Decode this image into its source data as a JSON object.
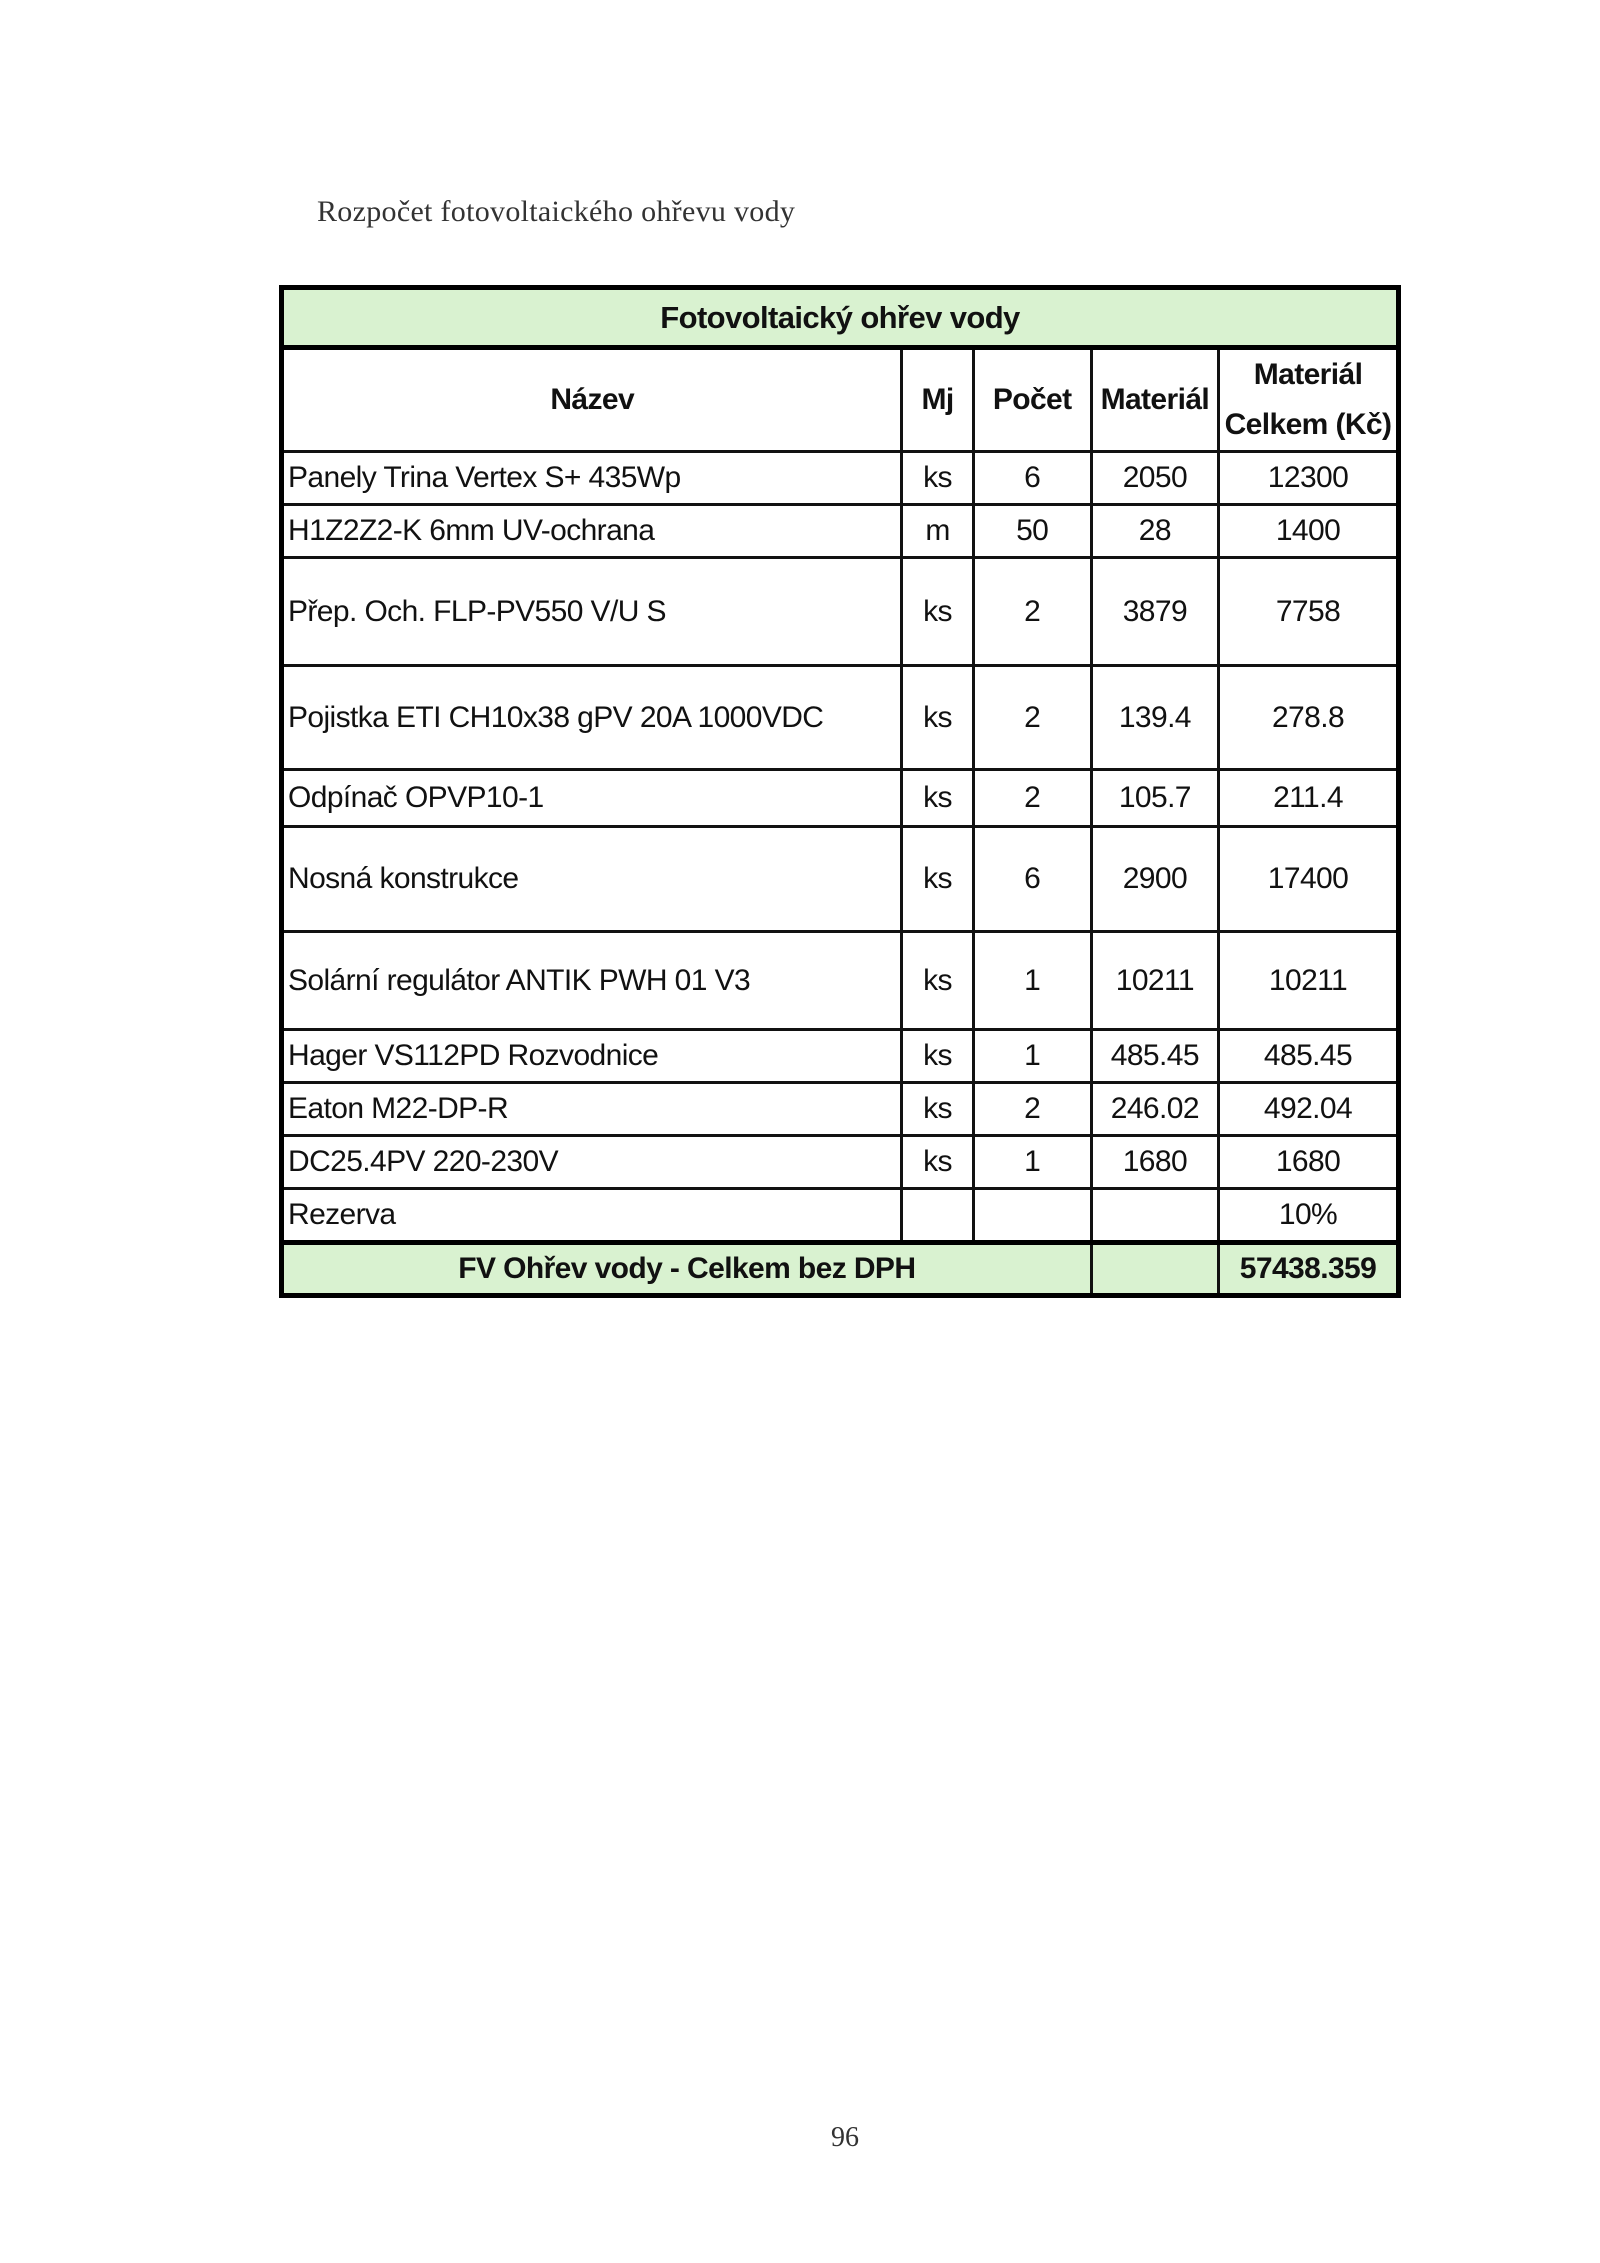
{
  "heading": "Rozpočet fotovoltaického ohřevu vody",
  "table": {
    "title": "Fotovoltaický ohřev vody",
    "columns": [
      "Název",
      "Mj",
      "Počet",
      "Materiál",
      "Materiál Celkem (Kč)"
    ],
    "rows": [
      {
        "name": "Panely Trina Vertex S+ 435Wp",
        "mj": "ks",
        "pocet": "6",
        "material": "2050",
        "celkem": "12300"
      },
      {
        "name": "H1Z2Z2-K 6mm UV-ochrana",
        "mj": "m",
        "pocet": "50",
        "material": "28",
        "celkem": "1400"
      },
      {
        "name": "Přep. Och. FLP-PV550 V/U S",
        "mj": "ks",
        "pocet": "2",
        "material": "3879",
        "celkem": "7758"
      },
      {
        "name": "Pojistka ETI CH10x38 gPV 20A 1000VDC",
        "mj": "ks",
        "pocet": "2",
        "material": "139.4",
        "celkem": "278.8"
      },
      {
        "name": "Odpínač OPVP10-1",
        "mj": "ks",
        "pocet": "2",
        "material": "105.7",
        "celkem": "211.4"
      },
      {
        "name": "Nosná konstrukce",
        "mj": "ks",
        "pocet": "6",
        "material": "2900",
        "celkem": "17400"
      },
      {
        "name": "Solární regulátor ANTIK PWH 01 V3",
        "mj": "ks",
        "pocet": "1",
        "material": "10211",
        "celkem": "10211"
      },
      {
        "name": "Hager VS112PD Rozvodnice",
        "mj": "ks",
        "pocet": "1",
        "material": "485.45",
        "celkem": "485.45"
      },
      {
        "name": "Eaton M22-DP-R",
        "mj": "ks",
        "pocet": "2",
        "material": "246.02",
        "celkem": "492.04"
      },
      {
        "name": "DC25.4PV 220-230V",
        "mj": "ks",
        "pocet": "1",
        "material": "1680",
        "celkem": "1680"
      },
      {
        "name": "Rezerva",
        "mj": "",
        "pocet": "",
        "material": "",
        "celkem": "10%"
      }
    ],
    "total_label": "FV Ohřev vody - Celkem bez DPH",
    "total_value": "57438.359",
    "header_bg": "#d9f2d0"
  },
  "page_number": "96"
}
